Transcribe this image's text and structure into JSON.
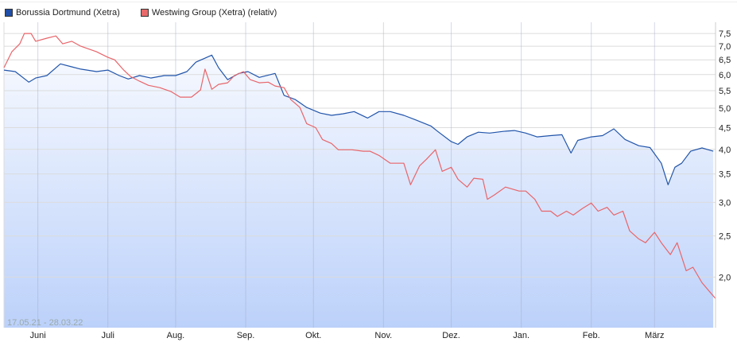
{
  "chart_data": {
    "type": "line",
    "title": "",
    "date_range_label": "17.05.21 - 28.03.22",
    "x_unit": "days since 17.05.21",
    "xlim": [
      0,
      315
    ],
    "y_scale": "log",
    "ylim": [
      1.52,
      7.97
    ],
    "grid": true,
    "legend_placement": "top-left",
    "y_ticks": [
      7.5,
      7.0,
      6.5,
      6.0,
      5.5,
      5.0,
      4.5,
      4.0,
      3.5,
      3.0,
      2.5,
      2.0
    ],
    "y_tick_labels": [
      "7,5",
      "7,0",
      "6,5",
      "6,0",
      "5,5",
      "5,0",
      "4,5",
      "4,0",
      "3,5",
      "3,0",
      "2,5",
      "2,0"
    ],
    "x_ticks": [
      {
        "label": "Juni",
        "t": 15
      },
      {
        "label": "Juli",
        "t": 46
      },
      {
        "label": "Aug.",
        "t": 76
      },
      {
        "label": "Sep.",
        "t": 107
      },
      {
        "label": "Okt.",
        "t": 137
      },
      {
        "label": "Nov.",
        "t": 168
      },
      {
        "label": "Dez.",
        "t": 198
      },
      {
        "label": "Jan.",
        "t": 229
      },
      {
        "label": "Feb.",
        "t": 260
      },
      {
        "label": "März",
        "t": 288
      }
    ],
    "series": [
      {
        "name": "Borussia Dortmund (Xetra)",
        "color": "#2255aa",
        "legend_color": "#1f4fa8",
        "points": [
          [
            0,
            6.15
          ],
          [
            5,
            6.1
          ],
          [
            11,
            5.76
          ],
          [
            14,
            5.89
          ],
          [
            19,
            5.97
          ],
          [
            25,
            6.36
          ],
          [
            30,
            6.26
          ],
          [
            34,
            6.18
          ],
          [
            41,
            6.1
          ],
          [
            46,
            6.15
          ],
          [
            51,
            5.97
          ],
          [
            55,
            5.86
          ],
          [
            60,
            5.97
          ],
          [
            65,
            5.89
          ],
          [
            71,
            5.97
          ],
          [
            76,
            5.97
          ],
          [
            81,
            6.1
          ],
          [
            85,
            6.42
          ],
          [
            92,
            6.67
          ],
          [
            95,
            6.23
          ],
          [
            99,
            5.84
          ],
          [
            104,
            6.04
          ],
          [
            108,
            6.1
          ],
          [
            113,
            5.91
          ],
          [
            120,
            6.04
          ],
          [
            124,
            5.36
          ],
          [
            129,
            5.24
          ],
          [
            134,
            5.02
          ],
          [
            140,
            4.87
          ],
          [
            145,
            4.81
          ],
          [
            150,
            4.85
          ],
          [
            155,
            4.91
          ],
          [
            161,
            4.74
          ],
          [
            166,
            4.91
          ],
          [
            171,
            4.91
          ],
          [
            177,
            4.81
          ],
          [
            182,
            4.7
          ],
          [
            189,
            4.54
          ],
          [
            192,
            4.41
          ],
          [
            198,
            4.17
          ],
          [
            201,
            4.11
          ],
          [
            205,
            4.28
          ],
          [
            210,
            4.39
          ],
          [
            215,
            4.37
          ],
          [
            221,
            4.41
          ],
          [
            226,
            4.43
          ],
          [
            231,
            4.37
          ],
          [
            236,
            4.28
          ],
          [
            242,
            4.31
          ],
          [
            247,
            4.33
          ],
          [
            251,
            3.92
          ],
          [
            254,
            4.2
          ],
          [
            260,
            4.28
          ],
          [
            265,
            4.31
          ],
          [
            270,
            4.47
          ],
          [
            275,
            4.22
          ],
          [
            281,
            4.08
          ],
          [
            286,
            4.04
          ],
          [
            291,
            3.71
          ],
          [
            294,
            3.3
          ],
          [
            297,
            3.63
          ],
          [
            300,
            3.71
          ],
          [
            304,
            3.96
          ],
          [
            309,
            4.03
          ],
          [
            314,
            3.96
          ]
        ]
      },
      {
        "name": "Westwing Group (Xetra) (relativ)",
        "color": "#e8656a",
        "legend_color": "#e86a6a",
        "points": [
          [
            0,
            6.23
          ],
          [
            3.5,
            6.79
          ],
          [
            7,
            7.09
          ],
          [
            9,
            7.5
          ],
          [
            12,
            7.5
          ],
          [
            14,
            7.19
          ],
          [
            19,
            7.31
          ],
          [
            23,
            7.4
          ],
          [
            26,
            7.09
          ],
          [
            30,
            7.19
          ],
          [
            34,
            7.0
          ],
          [
            41,
            6.79
          ],
          [
            46,
            6.59
          ],
          [
            49,
            6.5
          ],
          [
            53,
            6.15
          ],
          [
            56,
            5.94
          ],
          [
            60,
            5.79
          ],
          [
            64,
            5.66
          ],
          [
            69,
            5.59
          ],
          [
            74,
            5.47
          ],
          [
            78,
            5.31
          ],
          [
            83,
            5.31
          ],
          [
            87,
            5.52
          ],
          [
            89,
            6.18
          ],
          [
            92,
            5.54
          ],
          [
            95,
            5.69
          ],
          [
            99,
            5.74
          ],
          [
            102,
            5.97
          ],
          [
            106,
            6.1
          ],
          [
            109,
            5.84
          ],
          [
            113,
            5.74
          ],
          [
            117,
            5.76
          ],
          [
            120,
            5.64
          ],
          [
            124,
            5.59
          ],
          [
            127,
            5.24
          ],
          [
            131,
            5.02
          ],
          [
            134,
            4.6
          ],
          [
            138,
            4.5
          ],
          [
            141,
            4.22
          ],
          [
            145,
            4.13
          ],
          [
            148,
            3.99
          ],
          [
            154,
            3.99
          ],
          [
            159,
            3.96
          ],
          [
            162,
            3.96
          ],
          [
            166,
            3.87
          ],
          [
            171,
            3.71
          ],
          [
            177,
            3.71
          ],
          [
            180,
            3.3
          ],
          [
            184,
            3.66
          ],
          [
            187,
            3.79
          ],
          [
            191,
            3.99
          ],
          [
            194,
            3.55
          ],
          [
            198,
            3.63
          ],
          [
            201,
            3.4
          ],
          [
            205,
            3.26
          ],
          [
            208,
            3.42
          ],
          [
            212,
            3.4
          ],
          [
            214,
            3.05
          ],
          [
            217,
            3.12
          ],
          [
            222,
            3.26
          ],
          [
            228,
            3.19
          ],
          [
            231,
            3.19
          ],
          [
            235,
            3.05
          ],
          [
            238,
            2.86
          ],
          [
            242,
            2.86
          ],
          [
            245,
            2.78
          ],
          [
            249,
            2.86
          ],
          [
            252,
            2.8
          ],
          [
            256,
            2.9
          ],
          [
            260,
            2.99
          ],
          [
            263,
            2.86
          ],
          [
            267,
            2.92
          ],
          [
            270,
            2.8
          ],
          [
            274,
            2.86
          ],
          [
            277,
            2.57
          ],
          [
            281,
            2.46
          ],
          [
            284,
            2.41
          ],
          [
            288,
            2.55
          ],
          [
            291,
            2.41
          ],
          [
            295,
            2.26
          ],
          [
            298,
            2.41
          ],
          [
            302,
            2.07
          ],
          [
            305,
            2.11
          ],
          [
            309,
            1.94
          ],
          [
            315,
            1.78
          ]
        ]
      }
    ]
  }
}
